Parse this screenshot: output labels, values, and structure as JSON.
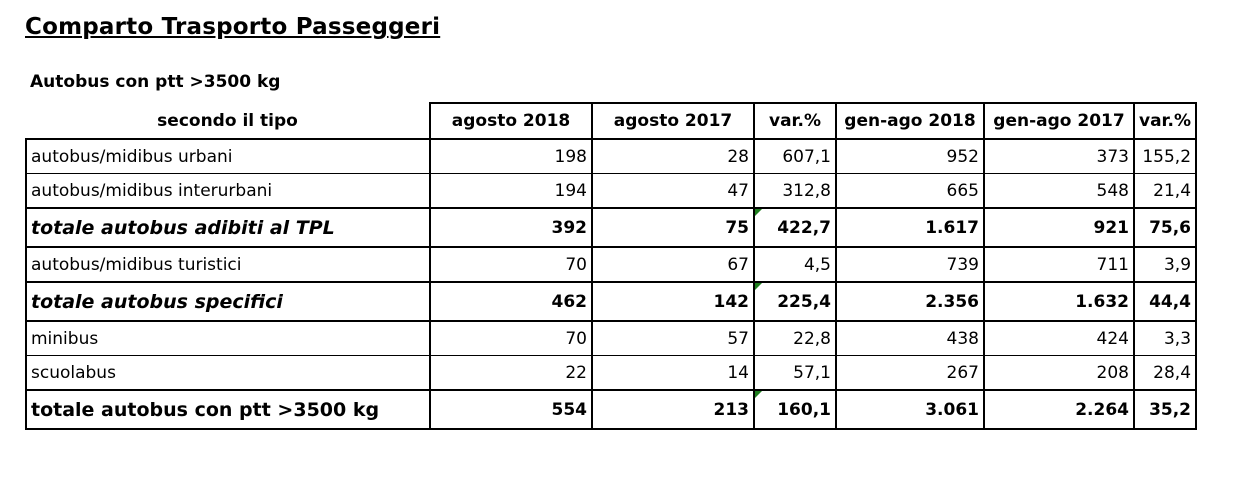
{
  "title": "Comparto Trasporto Passeggeri",
  "subtitle": "Autobus con ptt >3500 kg",
  "table": {
    "headers": [
      "secondo il tipo",
      "agosto 2018",
      "agosto 2017",
      "var.%",
      "gen-ago 2018",
      "gen-ago 2017",
      "var.%"
    ],
    "rows": [
      {
        "label": "autobus/midibus urbani",
        "v1": "198",
        "v2": "28",
        "v3": "607,1",
        "v4": "952",
        "v5": "373",
        "v6": "155,2"
      },
      {
        "label": "autobus/midibus interurbani",
        "v1": "194",
        "v2": "47",
        "v3": "312,8",
        "v4": "665",
        "v5": "548",
        "v6": "21,4"
      },
      {
        "label": "totale autobus adibiti al TPL",
        "v1": "392",
        "v2": "75",
        "v3": "422,7",
        "v4": "1.617",
        "v5": "921",
        "v6": "75,6"
      },
      {
        "label": "autobus/midibus turistici",
        "v1": "70",
        "v2": "67",
        "v3": "4,5",
        "v4": "739",
        "v5": "711",
        "v6": "3,9"
      },
      {
        "label": "totale autobus specifici",
        "v1": "462",
        "v2": "142",
        "v3": "225,4",
        "v4": "2.356",
        "v5": "1.632",
        "v6": "44,4"
      },
      {
        "label": "minibus",
        "v1": "70",
        "v2": "57",
        "v3": "22,8",
        "v4": "438",
        "v5": "424",
        "v6": "3,3"
      },
      {
        "label": "scuolabus",
        "v1": "22",
        "v2": "14",
        "v3": "57,1",
        "v4": "267",
        "v5": "208",
        "v6": "28,4"
      },
      {
        "label": "totale autobus con ptt >3500 kg",
        "v1": "554",
        "v2": "213",
        "v3": "160,1",
        "v4": "3.061",
        "v5": "2.264",
        "v6": "35,2"
      }
    ]
  }
}
